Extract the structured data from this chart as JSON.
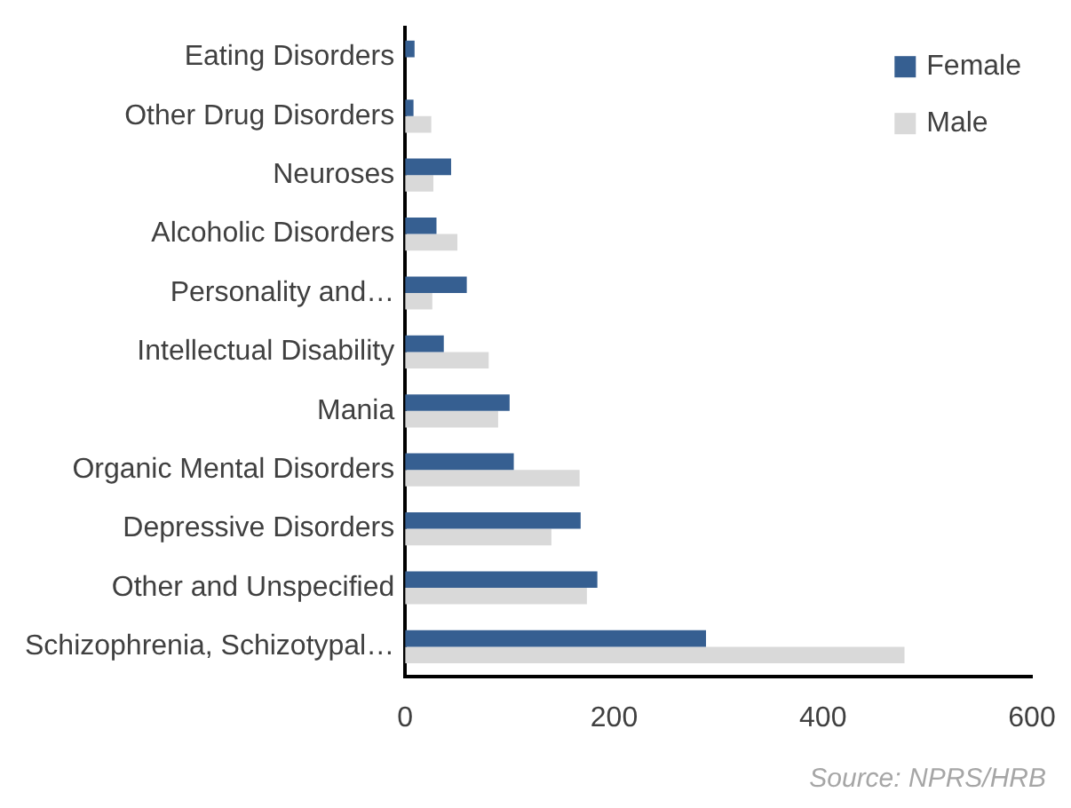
{
  "chart_data": {
    "type": "bar",
    "orientation": "horizontal",
    "categories": [
      "Eating Disorders",
      "Other Drug Disorders",
      "Neuroses",
      "Alcoholic Disorders",
      "Personality and…",
      "Intellectual Disability",
      "Mania",
      "Organic Mental Disorders",
      "Depressive Disorders",
      "Other and Unspecified",
      "Schizophrenia, Schizotypal…"
    ],
    "series": [
      {
        "name": "Female",
        "color": "#365f91",
        "values": [
          9,
          8,
          44,
          30,
          59,
          37,
          100,
          104,
          168,
          184,
          288
        ]
      },
      {
        "name": "Male",
        "color": "#d9d9d9",
        "values": [
          0,
          25,
          27,
          50,
          26,
          80,
          89,
          167,
          140,
          174,
          478
        ]
      }
    ],
    "xlim": [
      0,
      600
    ],
    "xticks": [
      0,
      200,
      400,
      600
    ],
    "grid": false,
    "legend": "top right",
    "annotations": [
      "Source: NPRS/HRB"
    ]
  }
}
